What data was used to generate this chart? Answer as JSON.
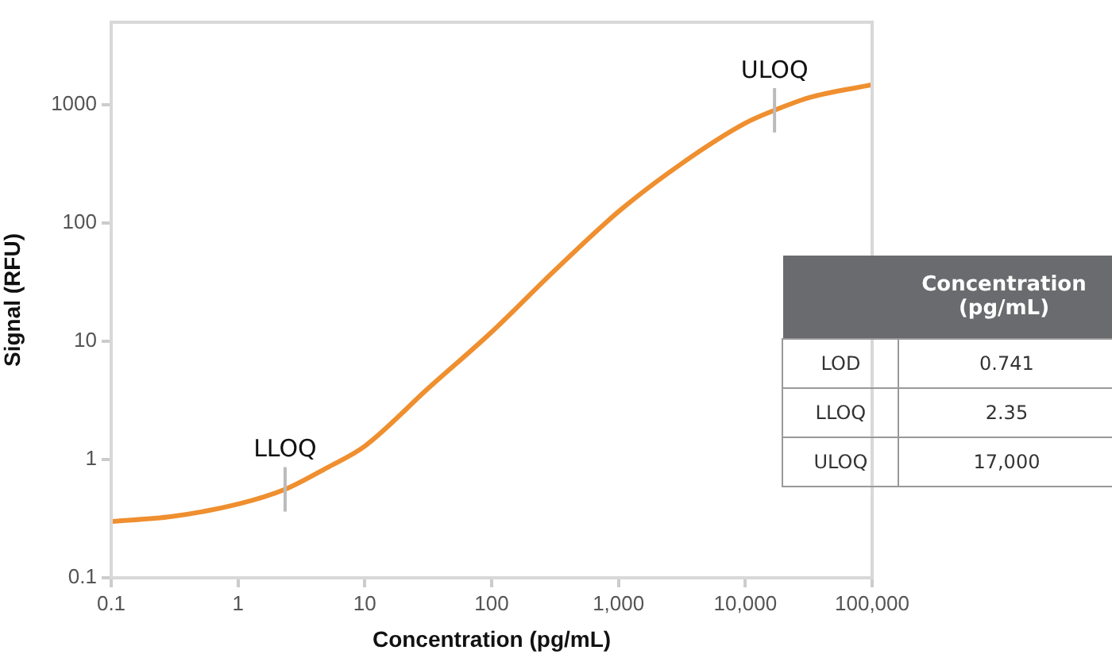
{
  "chart_data": {
    "type": "line",
    "xlabel": "Concentration (pg/mL)",
    "ylabel": "Signal (RFU)",
    "log": "xy",
    "marker": "none",
    "line_style": "solid",
    "x": [
      0.1,
      0.3,
      1,
      2.35,
      5,
      10,
      31.6,
      100,
      316,
      1000,
      3162,
      10000,
      17000,
      31623,
      100000
    ],
    "series": [
      {
        "color": "#ef8f2f",
        "values": [
          0.3,
          0.33,
          0.42,
          0.56,
          0.85,
          1.3,
          4,
          12,
          40,
          125,
          320,
          700,
          900,
          1150,
          1480
        ]
      }
    ],
    "xlim": [
      0.1,
      100000
    ],
    "ylim": [
      0.1,
      5000
    ],
    "xticks": [
      0.1,
      1,
      10,
      100,
      {
        "value": 1000,
        "label": "1,000"
      },
      {
        "value": 10000,
        "label": "10,000"
      },
      {
        "value": 100000,
        "label": "100,000"
      }
    ],
    "yticks": [
      0.1,
      1,
      10,
      100,
      1000
    ],
    "annotations": [
      {
        "text": "LLOQ",
        "x": 2.35,
        "y": 0.56
      },
      {
        "text": "ULOQ",
        "x": 17000,
        "y": 900
      },
      "Concentration (pg/mL)",
      "LOD",
      "0.741",
      "LLOQ",
      "2.35",
      "ULOQ",
      "17,000"
    ]
  }
}
